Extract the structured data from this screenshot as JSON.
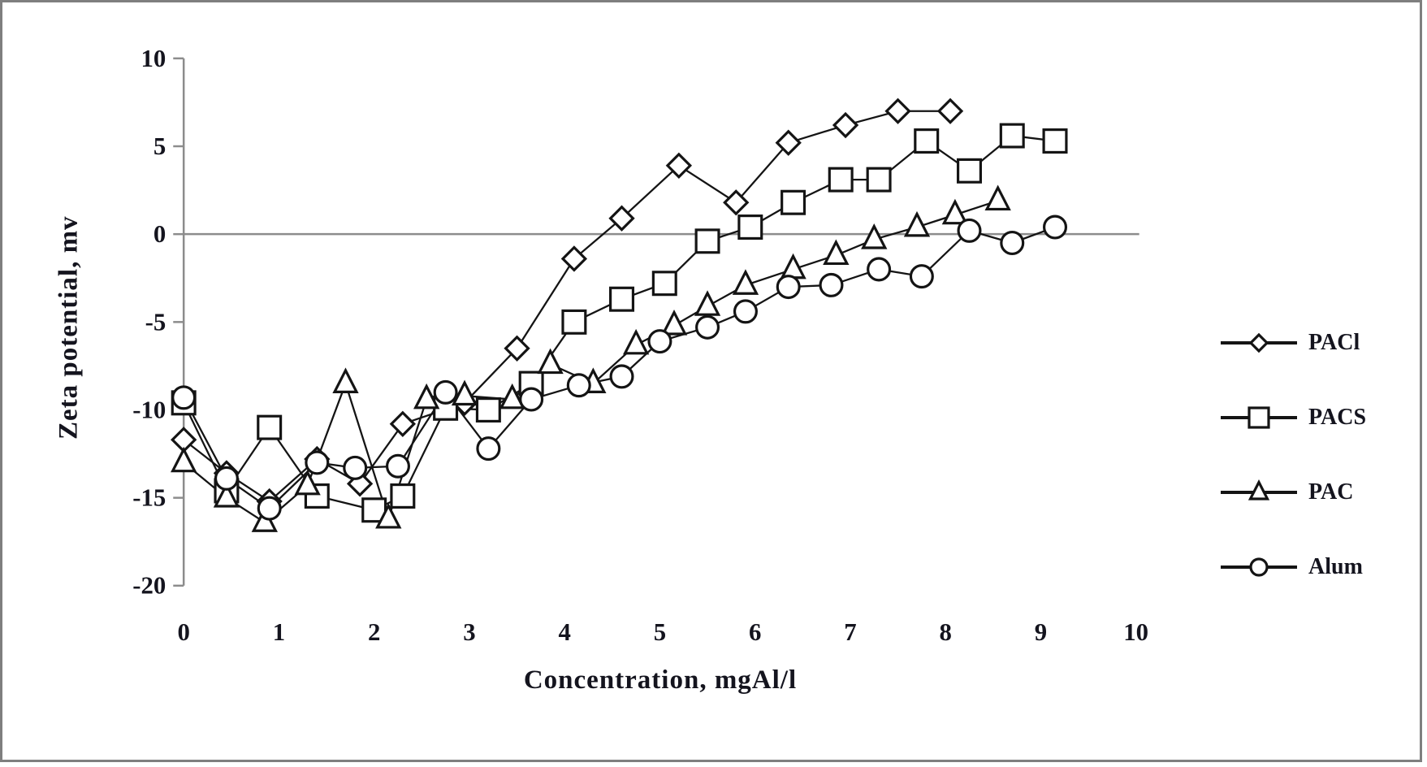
{
  "colors": {
    "frame_border": "#7f7f7f",
    "axis": "#8c8c8c",
    "zero_line": "#8c8c8c",
    "series_stroke": "#141414",
    "marker_fill": "#ffffff",
    "text": "#14141e"
  },
  "chart_data": {
    "type": "line",
    "title": "",
    "xlabel": "Concentration, mgAl/l",
    "ylabel": "Zeta potential, mv",
    "xlim": [
      0,
      10
    ],
    "ylim": [
      -20,
      10
    ],
    "x_ticks": [
      0,
      1,
      2,
      3,
      4,
      5,
      6,
      7,
      8,
      9,
      10
    ],
    "y_ticks": [
      10,
      5,
      0,
      -5,
      -10,
      -15,
      -20
    ],
    "grid": false,
    "zero_line": true,
    "legend_position": "right",
    "series": [
      {
        "name": "PACl",
        "marker": "diamond",
        "points": [
          [
            0,
            -11.7
          ],
          [
            0.45,
            -13.6
          ],
          [
            0.9,
            -15.2
          ],
          [
            1.4,
            -12.8
          ],
          [
            1.85,
            -14.2
          ],
          [
            2.3,
            -10.8
          ],
          [
            2.95,
            -9.6
          ],
          [
            3.5,
            -6.5
          ],
          [
            4.1,
            -1.4
          ],
          [
            4.6,
            0.9
          ],
          [
            5.2,
            3.9
          ],
          [
            5.8,
            1.8
          ],
          [
            6.35,
            5.2
          ],
          [
            6.95,
            6.2
          ],
          [
            7.5,
            7.0
          ],
          [
            8.05,
            7.0
          ]
        ]
      },
      {
        "name": "PACS",
        "marker": "square",
        "points": [
          [
            0,
            -9.6
          ],
          [
            0.45,
            -14.6
          ],
          [
            0.9,
            -11.0
          ],
          [
            1.4,
            -14.9
          ],
          [
            2.0,
            -15.7
          ],
          [
            2.3,
            -14.9
          ],
          [
            2.75,
            -9.9
          ],
          [
            3.2,
            -10.0
          ],
          [
            3.65,
            -8.5
          ],
          [
            4.1,
            -5.0
          ],
          [
            4.6,
            -3.7
          ],
          [
            5.05,
            -2.8
          ],
          [
            5.5,
            -0.4
          ],
          [
            5.95,
            0.4
          ],
          [
            6.4,
            1.8
          ],
          [
            6.9,
            3.1
          ],
          [
            7.3,
            3.1
          ],
          [
            7.8,
            5.3
          ],
          [
            8.25,
            3.6
          ],
          [
            8.7,
            5.6
          ],
          [
            9.15,
            5.3
          ]
        ]
      },
      {
        "name": "PAC",
        "marker": "triangle",
        "points": [
          [
            0,
            -13.0
          ],
          [
            0.45,
            -15.0
          ],
          [
            0.85,
            -16.4
          ],
          [
            1.3,
            -14.3
          ],
          [
            1.7,
            -8.5
          ],
          [
            2.15,
            -16.2
          ],
          [
            2.55,
            -9.4
          ],
          [
            2.95,
            -9.2
          ],
          [
            3.45,
            -9.4
          ],
          [
            3.85,
            -7.4
          ],
          [
            4.3,
            -8.5
          ],
          [
            4.75,
            -6.3
          ],
          [
            5.15,
            -5.2
          ],
          [
            5.5,
            -4.1
          ],
          [
            5.9,
            -2.9
          ],
          [
            6.4,
            -2.0
          ],
          [
            6.85,
            -1.2
          ],
          [
            7.25,
            -0.3
          ],
          [
            7.7,
            0.4
          ],
          [
            8.1,
            1.1
          ],
          [
            8.55,
            1.9
          ]
        ]
      },
      {
        "name": "Alum",
        "marker": "circle",
        "points": [
          [
            0,
            -9.3
          ],
          [
            0.45,
            -13.9
          ],
          [
            0.9,
            -15.6
          ],
          [
            1.4,
            -13.0
          ],
          [
            1.8,
            -13.3
          ],
          [
            2.25,
            -13.2
          ],
          [
            2.75,
            -9.0
          ],
          [
            3.2,
            -12.2
          ],
          [
            3.65,
            -9.4
          ],
          [
            4.15,
            -8.6
          ],
          [
            4.6,
            -8.1
          ],
          [
            5.0,
            -6.1
          ],
          [
            5.5,
            -5.3
          ],
          [
            5.9,
            -4.4
          ],
          [
            6.35,
            -3.0
          ],
          [
            6.8,
            -2.9
          ],
          [
            7.3,
            -2.0
          ],
          [
            7.75,
            -2.4
          ],
          [
            8.25,
            0.2
          ],
          [
            8.7,
            -0.5
          ],
          [
            9.15,
            0.4
          ]
        ]
      }
    ]
  }
}
